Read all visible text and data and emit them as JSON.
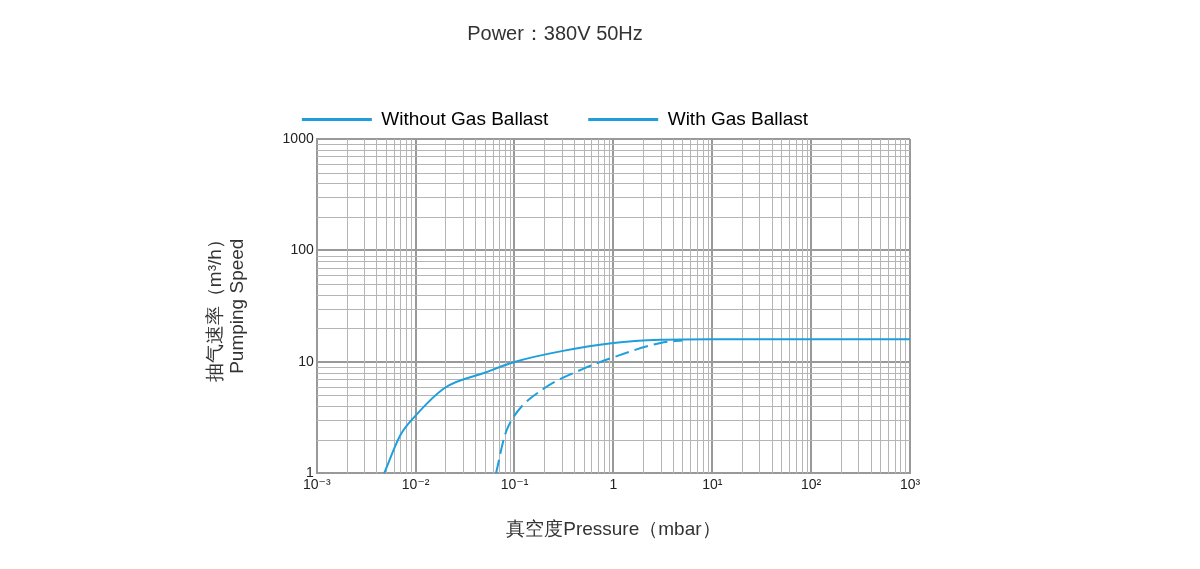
{
  "chart_data": {
    "type": "line",
    "title": "Power：380V 50Hz",
    "xlabel": "真空度Pressure（mbar）",
    "ylabel": "抽气速率（m³/h）\nPumping Speed",
    "log": "xy",
    "grid": true,
    "legend": "top",
    "marker": "none",
    "xlim": [
      0.001,
      1000
    ],
    "xticks": [
      {
        "value": 0.001,
        "label": "10⁻³"
      },
      {
        "value": 0.01,
        "label": "10⁻²"
      },
      {
        "value": 0.1,
        "label": "10⁻¹"
      },
      1,
      {
        "value": 10,
        "label": "10¹"
      },
      {
        "value": 100,
        "label": "10²"
      },
      {
        "value": 1000,
        "label": "10³"
      }
    ],
    "ylim": [
      1,
      1000
    ],
    "yticks": [
      1,
      10,
      100,
      1000
    ],
    "series": [
      {
        "name": "Without Gas Ballast",
        "color": "#1e9fdc",
        "line_style": "solid",
        "x": [
          0.0048,
          0.007,
          0.01,
          0.02,
          0.05,
          0.1,
          0.3,
          1,
          3,
          10,
          100,
          1000
        ],
        "values": [
          1,
          2.2,
          3.3,
          5.9,
          8,
          10,
          12.5,
          14.8,
          15.8,
          16,
          16,
          16
        ]
      },
      {
        "name": "With Gas Ballast",
        "color": "#1e9fdc",
        "line_style": "dashed",
        "x": [
          0.065,
          0.08,
          0.1,
          0.2,
          0.5,
          1,
          3,
          5
        ],
        "values": [
          1,
          2.2,
          3.3,
          5.8,
          8.7,
          11,
          14.8,
          15.6
        ]
      }
    ]
  }
}
